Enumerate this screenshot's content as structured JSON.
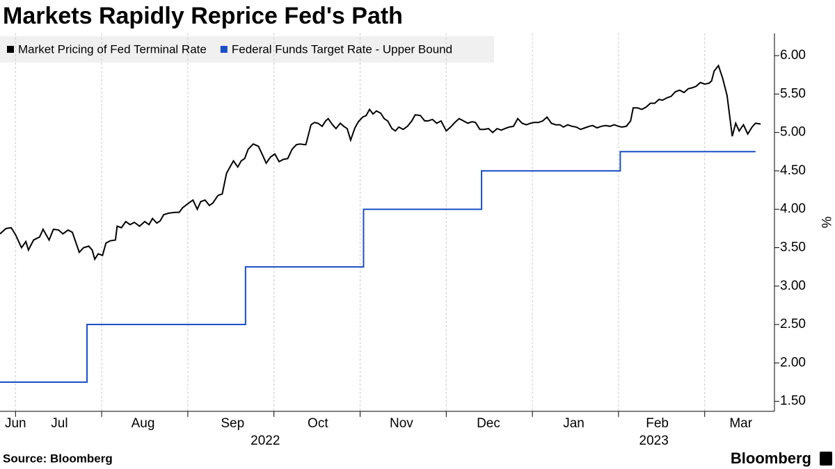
{
  "chart_data": {
    "type": "line",
    "title": "Markets Rapidly Reprice Fed's Path",
    "source": "Source: Bloomberg",
    "brand": "Bloomberg",
    "ylabel": "%",
    "ylim": [
      1.37,
      6.29
    ],
    "yticks": [
      {
        "value": 1.5,
        "label": "1.50"
      },
      {
        "value": 2,
        "label": "2.00"
      },
      {
        "value": 2.5,
        "label": "2.50"
      },
      {
        "value": 3,
        "label": "3.00"
      },
      {
        "value": 3.5,
        "label": "3.50"
      },
      {
        "value": 4,
        "label": "4.00"
      },
      {
        "value": 4.5,
        "label": "4.50"
      },
      {
        "value": 5,
        "label": "5.00"
      },
      {
        "value": 5.5,
        "label": "5.50"
      },
      {
        "value": 6,
        "label": "6.00"
      }
    ],
    "xlim": [
      0.82,
      9.81
    ],
    "xticks": [
      {
        "value": 1.0,
        "label": "Jun"
      },
      {
        "value": 1.51,
        "label": "Jul"
      },
      {
        "value": 2.48,
        "label": "Aug"
      },
      {
        "value": 3.52,
        "label": "Sep"
      },
      {
        "value": 4.51,
        "label": "Oct"
      },
      {
        "value": 5.48,
        "label": "Nov"
      },
      {
        "value": 6.49,
        "label": "Dec"
      },
      {
        "value": 7.48,
        "label": "Jan"
      },
      {
        "value": 8.45,
        "label": "Feb"
      },
      {
        "value": 9.42,
        "label": "Mar"
      }
    ],
    "xgrid": [
      1,
      2,
      3,
      4,
      5,
      6,
      7,
      8,
      9
    ],
    "years": [
      {
        "value": 3.9,
        "label": "2022"
      },
      {
        "value": 8.41,
        "label": "2023"
      }
    ],
    "series": [
      {
        "name": "Market Pricing of Fed Terminal Rate",
        "color": "#000000",
        "x": [
          0.82,
          0.89,
          0.95,
          1.0,
          1.07,
          1.12,
          1.15,
          1.21,
          1.28,
          1.32,
          1.39,
          1.44,
          1.5,
          1.55,
          1.61,
          1.66,
          1.74,
          1.79,
          1.85,
          1.89,
          1.92,
          1.96,
          2.01,
          2.05,
          2.1,
          2.16,
          2.18,
          2.23,
          2.28,
          2.33,
          2.38,
          2.44,
          2.5,
          2.55,
          2.59,
          2.64,
          2.68,
          2.72,
          2.78,
          2.85,
          2.9,
          2.94,
          3.01,
          3.06,
          3.11,
          3.15,
          3.2,
          3.25,
          3.29,
          3.35,
          3.4,
          3.45,
          3.49,
          3.53,
          3.58,
          3.62,
          3.66,
          3.7,
          3.76,
          3.82,
          3.87,
          3.91,
          3.96,
          4.01,
          4.06,
          4.11,
          4.16,
          4.21,
          4.26,
          4.3,
          4.37,
          4.43,
          4.47,
          4.51,
          4.56,
          4.6,
          4.63,
          4.68,
          4.72,
          4.77,
          4.81,
          4.85,
          4.89,
          4.94,
          4.98,
          5.03,
          5.07,
          5.11,
          5.15,
          5.19,
          5.24,
          5.28,
          5.32,
          5.37,
          5.41,
          5.45,
          5.5,
          5.55,
          5.6,
          5.64,
          5.7,
          5.75,
          5.79,
          5.84,
          5.89,
          5.94,
          6.0,
          6.05,
          6.1,
          6.15,
          6.2,
          6.25,
          6.3,
          6.34,
          6.39,
          6.44,
          6.49,
          6.54,
          6.59,
          6.64,
          6.68,
          6.73,
          6.78,
          6.83,
          6.88,
          6.93,
          6.98,
          7.02,
          7.07,
          7.12,
          7.17,
          7.22,
          7.27,
          7.32,
          7.36,
          7.41,
          7.46,
          7.51,
          7.56,
          7.61,
          7.66,
          7.7,
          7.75,
          7.8,
          7.85,
          7.9,
          7.95,
          8.0,
          8.04,
          8.09,
          8.14,
          8.17,
          8.22,
          8.27,
          8.32,
          8.37,
          8.42,
          8.47,
          8.51,
          8.56,
          8.61,
          8.66,
          8.71,
          8.76,
          8.81,
          8.85,
          8.9,
          8.95,
          9.0,
          9.05,
          9.08,
          9.11,
          9.16,
          9.21,
          9.26,
          9.32,
          9.36,
          9.4,
          9.45,
          9.5,
          9.55,
          9.59,
          9.65
        ],
        "values": [
          3.68,
          3.75,
          3.76,
          3.67,
          3.5,
          3.58,
          3.47,
          3.6,
          3.64,
          3.74,
          3.6,
          3.74,
          3.73,
          3.68,
          3.73,
          3.7,
          3.44,
          3.5,
          3.52,
          3.47,
          3.35,
          3.42,
          3.4,
          3.56,
          3.59,
          3.6,
          3.78,
          3.76,
          3.84,
          3.8,
          3.83,
          3.78,
          3.84,
          3.8,
          3.88,
          3.82,
          3.85,
          3.93,
          3.95,
          3.96,
          3.96,
          4.02,
          4.08,
          4.12,
          4.0,
          4.1,
          4.12,
          4.05,
          4.08,
          4.18,
          4.2,
          4.47,
          4.55,
          4.63,
          4.55,
          4.63,
          4.66,
          4.78,
          4.85,
          4.82,
          4.7,
          4.6,
          4.68,
          4.72,
          4.62,
          4.65,
          4.66,
          4.78,
          4.84,
          4.85,
          4.84,
          5.1,
          5.13,
          5.12,
          5.08,
          5.15,
          5.18,
          5.1,
          5.05,
          5.12,
          5.08,
          5.05,
          4.9,
          5.06,
          5.14,
          5.2,
          5.22,
          5.3,
          5.24,
          5.28,
          5.25,
          5.18,
          5.15,
          5.05,
          5.02,
          5.07,
          5.04,
          5.08,
          5.15,
          5.23,
          5.22,
          5.15,
          5.15,
          5.17,
          5.12,
          5.15,
          5.02,
          5.07,
          5.13,
          5.18,
          5.15,
          5.12,
          5.14,
          5.13,
          5.04,
          5.04,
          5.05,
          5.0,
          5.05,
          5.03,
          5.05,
          5.07,
          5.08,
          5.18,
          5.12,
          5.1,
          5.12,
          5.13,
          5.13,
          5.15,
          5.2,
          5.12,
          5.1,
          5.1,
          5.07,
          5.1,
          5.08,
          5.07,
          5.04,
          5.06,
          5.08,
          5.09,
          5.06,
          5.08,
          5.09,
          5.08,
          5.1,
          5.08,
          5.07,
          5.08,
          5.15,
          5.32,
          5.32,
          5.3,
          5.33,
          5.38,
          5.38,
          5.43,
          5.42,
          5.45,
          5.47,
          5.53,
          5.55,
          5.52,
          5.57,
          5.58,
          5.6,
          5.65,
          5.63,
          5.64,
          5.67,
          5.8,
          5.87,
          5.7,
          5.48,
          4.95,
          5.12,
          5.02,
          5.1,
          4.98,
          5.07,
          5.12,
          5.11
        ]
      },
      {
        "name": "Federal Funds Target Rate - Upper Bound",
        "color": "#1a4fc6",
        "step": true,
        "x": [
          0.82,
          1.83,
          3.67,
          5.04,
          6.41,
          8.02,
          9.59
        ],
        "values": [
          1.75,
          2.5,
          3.25,
          4.0,
          4.5,
          4.75,
          4.75
        ]
      }
    ]
  }
}
